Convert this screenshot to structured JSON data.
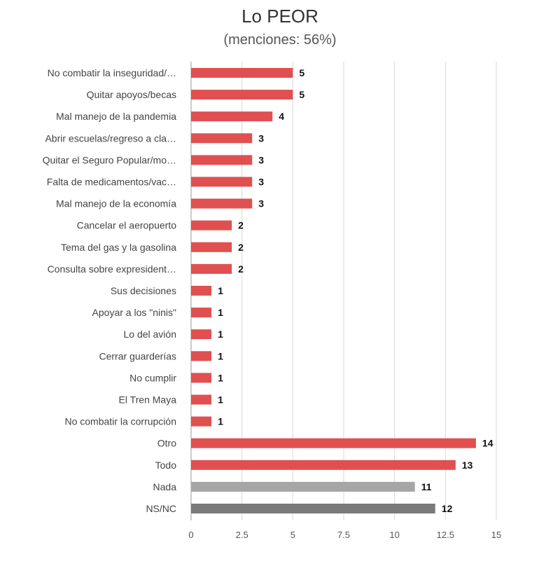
{
  "chart_data": {
    "type": "bar",
    "orientation": "horizontal",
    "title": "Lo PEOR",
    "subtitle": "(menciones: 56%)",
    "categories": [
      "No combatir la inseguridad/…",
      "Quitar apoyos/becas",
      "Mal manejo de la pandemia",
      "Abrir escuelas/regreso a cla…",
      "Quitar el Seguro Popular/mo…",
      "Falta de medicamentos/vac…",
      "Mal manejo de la economía",
      "Cancelar el aeropuerto",
      "Tema del gas y la gasolina",
      "Consulta sobre expresident…",
      "Sus decisiones",
      "Apoyar a los \"ninis\"",
      "Lo del avión",
      "Cerrar guarderías",
      "No cumplir",
      "El Tren Maya",
      "No combatir la corrupción",
      "Otro",
      "Todo",
      "Nada",
      "NS/NC"
    ],
    "values": [
      5,
      5,
      4,
      3,
      3,
      3,
      3,
      2,
      2,
      2,
      1,
      1,
      1,
      1,
      1,
      1,
      1,
      14,
      13,
      11,
      12
    ],
    "bar_colors": [
      "#e05050",
      "#e05050",
      "#e05050",
      "#e05050",
      "#e05050",
      "#e05050",
      "#e05050",
      "#e05050",
      "#e05050",
      "#e05050",
      "#e05050",
      "#e05050",
      "#e05050",
      "#e05050",
      "#e05050",
      "#e05050",
      "#e05050",
      "#e05050",
      "#e05050",
      "#a6a6a6",
      "#7a7a7a"
    ],
    "xlim": [
      0,
      15
    ],
    "xticks": [
      0,
      2.5,
      5,
      7.5,
      10,
      12.5,
      15
    ],
    "xtick_labels": [
      "0",
      "2.5",
      "5",
      "7.5",
      "10",
      "12.5",
      "15"
    ],
    "grid": true,
    "legend": "none"
  }
}
